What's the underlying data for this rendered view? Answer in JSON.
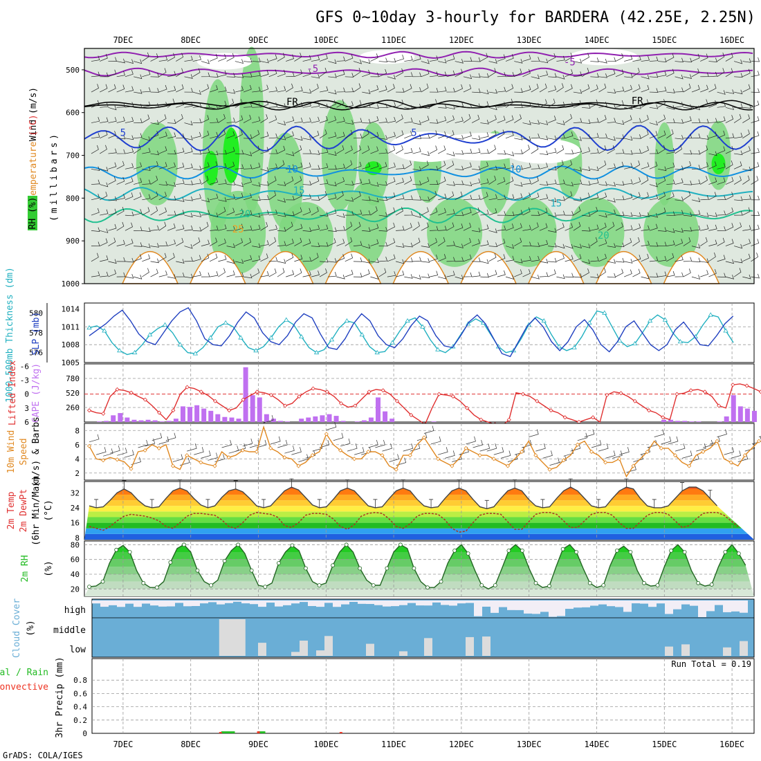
{
  "title": "GFS 0~10day 3-hourly for BARDERA (42.25E, 2.25N)",
  "footer": "GrADS: COLA/IGES",
  "colors": {
    "rh_green": "#33cc33",
    "temp_red": "#e03030",
    "temp_orange": "#f0a020",
    "thick_cyan": "#20b0c0",
    "slp_blue": "#2040c0",
    "cape_purple": "#c070f0",
    "wind_orange": "#e08820",
    "rh2m_green": "#22cc22",
    "cloud_blue": "#6aaed6",
    "cloud_gray": "#e0e0e0",
    "precip_green": "#22bb22",
    "precip_red": "#ee3322"
  },
  "x_axis": {
    "top_labels": [
      "7DEC",
      "8DEC",
      "9DEC",
      "10DEC",
      "11DEC",
      "12DEC",
      "13DEC",
      "14DEC",
      "15DEC",
      "16DEC"
    ],
    "bottom_labels": [
      "7DEC",
      "8DEC",
      "9DEC",
      "10DEC",
      "11DEC",
      "12DEC",
      "13DEC",
      "14DEC",
      "15DEC",
      "16DEC"
    ]
  },
  "panels": {
    "upper_air": {
      "ylabel_a": "Wind (m/s)",
      "ylabel_b_pre": "Temperature ",
      "ylabel_b_unit": "(°C)",
      "ylabel_c": "RH (%)",
      "ylabel_d": "(millibars)",
      "pressure_ticks": [
        "500",
        "600",
        "700",
        "800",
        "900",
        "1000"
      ],
      "isotherm_labels": [
        "-5",
        "-5",
        "FR",
        "FR",
        "5",
        "5",
        "10",
        "10",
        "15",
        "15",
        "20",
        "20",
        "25"
      ]
    },
    "thickness": {
      "ylabel_left": "1000-500mb Thickness (dm)",
      "ylabel_right": "SLP (mb)",
      "ticks_left": [
        "580",
        "578",
        "576"
      ],
      "ticks_right": [
        "1014",
        "1011",
        "1008",
        "1005"
      ]
    },
    "cape": {
      "ylabel_left": "Lifted Index",
      "ylabel_right": "CAPE (J/kg)",
      "ticks_left": [
        "-6",
        "-3",
        "0",
        "3",
        "6"
      ],
      "ticks_right": [
        "780",
        "520",
        "260"
      ]
    },
    "wind10": {
      "ylabel_1": "10m Wind",
      "ylabel_2": "Speed",
      "ylabel_3": "(m/s) & Barbs",
      "ticks": [
        "8",
        "6",
        "4",
        "2"
      ]
    },
    "temp2m": {
      "ylabel_1": "2m Temp",
      "ylabel_2": "2m DewPt",
      "ylabel_3": "(6hr Min/Max)",
      "ylabel_unit": "(°C)",
      "ticks": [
        "32",
        "24",
        "16",
        "8"
      ]
    },
    "rh2m": {
      "ylabel": "2m RH",
      "ylabel_unit": "(%)",
      "ticks": [
        "80",
        "60",
        "40",
        "20"
      ]
    },
    "cloud": {
      "ylabel": "Cloud Cover",
      "ylabel_unit": "(%)",
      "levels": [
        "high",
        "middle",
        "low"
      ]
    },
    "precip": {
      "ylabel_a": "tal / Rain",
      "ylabel_b": "Convective",
      "ylabel_c": "3hr Precip (mm)",
      "ticks": [
        "0.8",
        "0.6",
        "0.4",
        "0.2",
        "0"
      ],
      "run_total": "Run Total = 0.19"
    }
  },
  "chart_data": [
    {
      "type": "line",
      "title": "1000-500mb Thickness (dm) / SLP (mb)",
      "x_unit": "days since 6DEC 12Z (3-hourly)",
      "series": [
        {
          "name": "Thickness (dm)",
          "ylim": [
            575,
            581
          ],
          "values": [
            578.5,
            578.7,
            578.2,
            577.0,
            576.2,
            575.8,
            576.0,
            576.8,
            577.8,
            578.4,
            578.8,
            578.0,
            576.8,
            576.0,
            575.9,
            576.5,
            577.5,
            578.6,
            579.0,
            578.6,
            577.5,
            576.5,
            576.2,
            576.6,
            577.5,
            578.6,
            579.3,
            578.8,
            577.6,
            576.5,
            576.0,
            576.3,
            577.3,
            578.5,
            579.2,
            579.0,
            577.8,
            576.6,
            576.0,
            576.1,
            577.0,
            578.2,
            579.2,
            579.5,
            578.6,
            577.3,
            576.3,
            576.0,
            576.6,
            577.8,
            578.9,
            579.4,
            579.0,
            577.8,
            576.6,
            576.0,
            576.2,
            577.4,
            578.8,
            579.6,
            579.2,
            577.8,
            576.6,
            576.2,
            576.5,
            577.6,
            579.0,
            580.2,
            580.0,
            578.6,
            577.2,
            576.6,
            576.9,
            578.0,
            579.2,
            579.8,
            579.3,
            578.0,
            577.1,
            577.0,
            577.6,
            578.8,
            579.8,
            579.6,
            578.2,
            577.0
          ]
        },
        {
          "name": "SLP (mb)",
          "ylim": [
            1005,
            1015
          ],
          "values": [
            1009.5,
            1010.5,
            1011.5,
            1012.8,
            1013.8,
            1012.0,
            1009.8,
            1008.5,
            1008.0,
            1010.0,
            1012.0,
            1013.5,
            1014.2,
            1012.0,
            1009.0,
            1008.0,
            1007.8,
            1009.5,
            1011.8,
            1013.5,
            1012.5,
            1010.0,
            1008.5,
            1008.0,
            1009.5,
            1011.8,
            1013.2,
            1012.5,
            1009.8,
            1007.5,
            1007.2,
            1009.0,
            1011.5,
            1013.2,
            1012.0,
            1009.5,
            1008.0,
            1007.5,
            1009.0,
            1011.2,
            1012.8,
            1012.0,
            1009.5,
            1007.8,
            1007.5,
            1009.5,
            1011.8,
            1013.0,
            1011.5,
            1009.0,
            1006.5,
            1006.0,
            1008.5,
            1011.0,
            1012.5,
            1011.0,
            1008.5,
            1007.0,
            1008.5,
            1011.0,
            1012.2,
            1010.5,
            1008.0,
            1006.8,
            1008.5,
            1011.0,
            1012.0,
            1010.0,
            1008.0,
            1007.0,
            1008.0,
            1010.5,
            1011.8,
            1010.0,
            1008.0,
            1007.8,
            1009.5,
            1011.5,
            1012.8
          ]
        }
      ]
    },
    {
      "type": "bar",
      "title": "CAPE (J/kg) / Lifted Index",
      "x_unit": "days since 6DEC 12Z (3-hourly)",
      "ylim": [
        0,
        1000
      ],
      "values": [
        0,
        10,
        20,
        120,
        160,
        80,
        40,
        30,
        40,
        30,
        10,
        20,
        60,
        280,
        270,
        300,
        240,
        200,
        140,
        90,
        80,
        60,
        980,
        480,
        440,
        140,
        60,
        20,
        10,
        0,
        60,
        80,
        100,
        120,
        140,
        110,
        20,
        0,
        10,
        30,
        80,
        440,
        190,
        60,
        0,
        0,
        0,
        0,
        0,
        10,
        0,
        0,
        0,
        0,
        0,
        0,
        0,
        0,
        0,
        0,
        0,
        0,
        0,
        0,
        0,
        0,
        0,
        0,
        0,
        0,
        0,
        0,
        0,
        0,
        0,
        0,
        0,
        0,
        0,
        0,
        0,
        0,
        40,
        40,
        20,
        20,
        10,
        10,
        0,
        0,
        10,
        100,
        480,
        280,
        240,
        200
      ],
      "lifted_index": [
        3.5,
        4.0,
        4.2,
        0.5,
        -1.0,
        -0.8,
        -0.3,
        0.5,
        1.2,
        2.5,
        4.0,
        5.5,
        3.5,
        0.0,
        -1.5,
        -1.2,
        -0.5,
        0.3,
        1.5,
        2.5,
        3.5,
        3.0,
        1.2,
        0.3,
        -0.5,
        -0.3,
        0.2,
        1.2,
        2.5,
        2.0,
        0.5,
        -0.5,
        -1.2,
        -1.0,
        -0.5,
        0.5,
        2.0,
        2.8,
        2.5,
        1.0,
        -0.5,
        -1.0,
        -0.8,
        0.0,
        1.5,
        3.0,
        4.5,
        5.5,
        6.5,
        3.0,
        0.0,
        0.2,
        0.5,
        1.5,
        3.0,
        4.5,
        5.5,
        6.0,
        6.5,
        6.8,
        5.5,
        -0.3,
        0.0,
        0.5,
        1.5,
        2.5,
        3.5,
        4.0,
        5.0,
        5.5,
        6.0,
        5.5,
        5.0,
        6.0,
        0.2,
        -0.5,
        -0.2,
        0.5,
        1.5,
        2.5,
        3.5,
        4.0,
        5.0,
        5.5,
        0.0,
        -0.2,
        -0.8,
        -1.0,
        -0.5,
        0.5,
        2.5,
        3.0,
        -2.0,
        -2.2,
        -1.8,
        -1.2,
        -0.5
      ]
    },
    {
      "type": "line",
      "title": "10m Wind Speed (m/s)",
      "ylim": [
        1,
        9
      ],
      "values": [
        5.8,
        4.0,
        3.8,
        4.2,
        3.9,
        3.6,
        2.6,
        5.0,
        5.2,
        6.0,
        5.5,
        6.0,
        3.0,
        2.5,
        4.5,
        4.0,
        3.5,
        3.2,
        3.0,
        5.0,
        4.2,
        4.5,
        5.2,
        5.0,
        5.0,
        8.5,
        5.5,
        5.0,
        4.2,
        4.0,
        3.0,
        3.5,
        4.5,
        5.0,
        7.5,
        6.0,
        5.2,
        4.5,
        4.0,
        4.0,
        5.0,
        5.0,
        4.5,
        3.0,
        2.5,
        4.5,
        4.5,
        6.0,
        7.0,
        5.5,
        4.0,
        3.5,
        3.0,
        4.0,
        5.5,
        5.0,
        4.5,
        4.5,
        4.0,
        3.5,
        3.0,
        4.0,
        5.0,
        6.5,
        4.5,
        3.5,
        2.5,
        2.8,
        3.8,
        4.5,
        6.0,
        6.5,
        5.0,
        4.5,
        3.5,
        3.5,
        4.0,
        1.5,
        3.0,
        4.0,
        5.0,
        6.5,
        5.5,
        5.5,
        4.5,
        3.5,
        3.0,
        4.5,
        5.0,
        5.5,
        6.5,
        4.0,
        3.5,
        3.0,
        4.5,
        5.5,
        6.5
      ]
    },
    {
      "type": "area",
      "title": "2m Temp / 2m DewPt (°C)",
      "ylim": [
        7,
        38
      ],
      "temp": [
        25,
        24,
        24.5,
        28,
        32,
        34,
        32,
        28,
        25,
        24,
        24.5,
        29,
        33,
        34.5,
        33,
        29,
        25.5,
        24,
        25,
        29.5,
        33,
        34,
        32.5,
        29,
        25,
        24,
        25,
        29,
        33,
        35,
        33.5,
        29.5,
        25.5,
        24,
        24.5,
        28.5,
        33,
        34.5,
        33,
        29,
        25,
        24,
        24.5,
        29,
        33,
        34.5,
        33,
        28.5,
        25,
        24,
        24.5,
        29,
        33,
        34.5,
        33,
        28.5,
        24.5,
        23.5,
        24.5,
        29,
        33,
        34.5,
        33,
        28.5,
        25,
        24,
        24.5,
        29,
        33,
        35,
        33,
        29,
        25,
        24,
        24.5,
        29,
        33,
        35,
        34,
        29,
        25,
        24,
        24,
        25,
        29,
        33,
        35,
        35,
        33,
        29,
        25
      ],
      "dewpoint": [
        14,
        13,
        12,
        14,
        17,
        19.5,
        20.5,
        20,
        19.5,
        18.5,
        17,
        14,
        13,
        16,
        19.5,
        21,
        21,
        20.5,
        20,
        17.5,
        14,
        13,
        16,
        20,
        21.5,
        21,
        20.5,
        19,
        14.5,
        13.5,
        16,
        20,
        21,
        21,
        20.5,
        18,
        14,
        12.5,
        15,
        19.5,
        21,
        21.5,
        21,
        18,
        14,
        13,
        15.5,
        19.5,
        21,
        21,
        20.5,
        17.5,
        13,
        11,
        11.5,
        16,
        20,
        21,
        21,
        20.5,
        16.5,
        12.5,
        12.5,
        16.5,
        20.5,
        21.5,
        21.5,
        20.5,
        17,
        13.5,
        13.5,
        17,
        20.5,
        21.5,
        21.5,
        20,
        16,
        13,
        13,
        16.5,
        20,
        21.5,
        21.5,
        20.5,
        17,
        13.5,
        14.5,
        18,
        21,
        21.5,
        21.5,
        20,
        17,
        14
      ]
    },
    {
      "type": "area",
      "title": "2m RH (%)",
      "ylim": [
        10,
        85
      ],
      "values": [
        23,
        24,
        30,
        55,
        73,
        79,
        70,
        45,
        28,
        22,
        22,
        30,
        56,
        75,
        80,
        70,
        45,
        30,
        25,
        32,
        58,
        72,
        80,
        68,
        45,
        25,
        23,
        28,
        55,
        70,
        79,
        72,
        48,
        30,
        25,
        28,
        52,
        70,
        80,
        70,
        48,
        32,
        25,
        25,
        48,
        70,
        80,
        75,
        48,
        30,
        22,
        22,
        30,
        55,
        72,
        80,
        68,
        45,
        25,
        20,
        25,
        48,
        72,
        80,
        72,
        48,
        28,
        22,
        24,
        50,
        74,
        80,
        70,
        48,
        28,
        22,
        25,
        52,
        72,
        78,
        70,
        45,
        28,
        24,
        25,
        50,
        72,
        80,
        70,
        45,
        28,
        24,
        26,
        50,
        70,
        80,
        68,
        52
      ]
    },
    {
      "type": "bar",
      "title": "3hr Precip (mm)",
      "ylim": [
        0,
        1
      ],
      "run_total": 0.19,
      "rain": [
        {
          "day": 1.95,
          "value": 0.03
        },
        {
          "day": 2.05,
          "value": 0.03
        },
        {
          "day": 2.5,
          "value": 0.03
        }
      ],
      "convective": [
        {
          "day": 1.92,
          "value": 0.02
        },
        {
          "day": 2.48,
          "value": 0.03
        },
        {
          "day": 3.7,
          "value": 0.02
        }
      ]
    }
  ]
}
